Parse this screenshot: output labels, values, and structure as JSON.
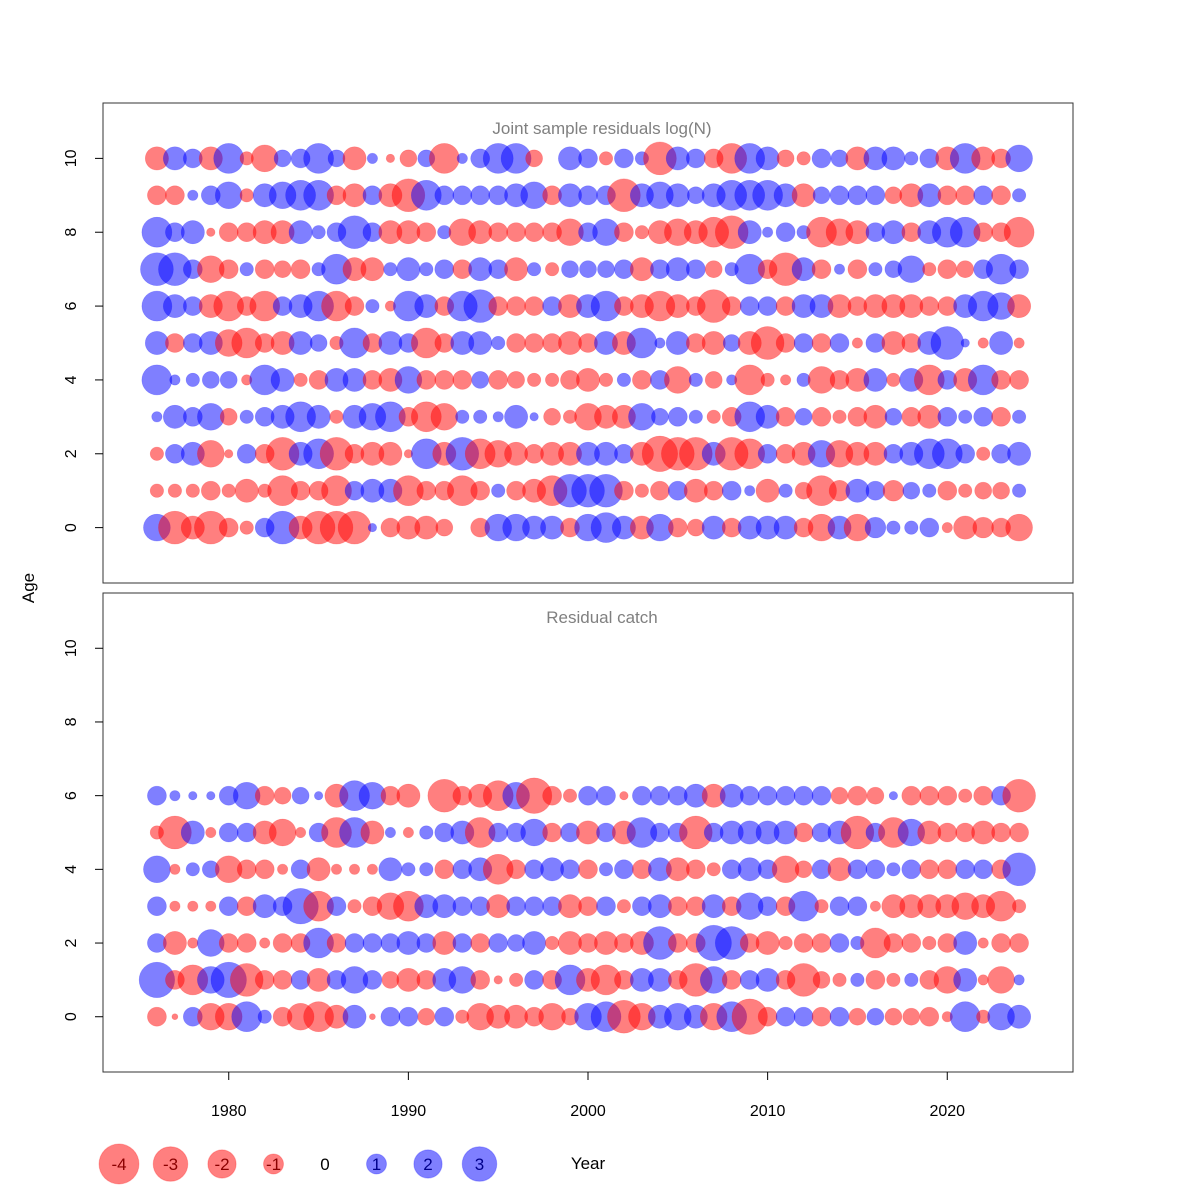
{
  "figure": {
    "ylabel": "Age",
    "xlabel": "Year"
  },
  "colors": {
    "negative": "#ff0000",
    "positive": "#0000ff",
    "title": "#808080",
    "text": "#000000"
  },
  "chart_data": [
    {
      "type": "scatter",
      "title": "Joint sample residuals log(N)",
      "ylabel": "Age",
      "xlabel": "Year",
      "xlim": [
        1973,
        2027
      ],
      "ylim": [
        -1.5,
        11.5
      ],
      "y_ticks": [
        "0",
        "2",
        "4",
        "6",
        "8",
        "10"
      ],
      "x_ticks": [
        "1980",
        "1990",
        "2000",
        "2010",
        "2020"
      ],
      "years": [
        1976,
        1977,
        1978,
        1979,
        1980,
        1981,
        1982,
        1983,
        1984,
        1985,
        1986,
        1987,
        1988,
        1989,
        1990,
        1991,
        1992,
        1993,
        1994,
        1995,
        1996,
        1997,
        1998,
        1999,
        2000,
        2001,
        2002,
        2003,
        2004,
        2005,
        2006,
        2007,
        2008,
        2009,
        2010,
        2011,
        2012,
        2013,
        2014,
        2015,
        2016,
        2017,
        2018,
        2019,
        2020,
        2021,
        2022,
        2023,
        2024
      ],
      "ages": [
        0,
        1,
        2,
        3,
        4,
        5,
        6,
        7,
        8,
        9,
        10
      ],
      "residuals": [
        [
          2.0,
          -3.0,
          -1.5,
          -3.0,
          -1.0,
          -0.5,
          1.0,
          3.0,
          -1.5,
          -3.0,
          -3.0,
          -3.0,
          0.2,
          -1.0,
          -1.5,
          -1.5,
          -0.8,
          0.0,
          -1.0,
          2.0,
          2.0,
          1.5,
          1.5,
          -1.0,
          2.0,
          2.5,
          1.5,
          -1.5,
          2.0,
          -1.0,
          -0.8,
          1.5,
          -1.0,
          1.5,
          1.5,
          1.5,
          -1.0,
          -2.0,
          1.5,
          -2.0,
          1.2,
          0.5,
          0.5,
          1.0,
          -0.3,
          -1.5,
          -1.2,
          -1.0,
          -2.0
        ],
        [
          -0.5,
          -0.5,
          -0.5,
          -1.0,
          -0.5,
          -1.5,
          -0.5,
          -2.5,
          -1.0,
          -1.0,
          -2.5,
          1.0,
          1.5,
          1.5,
          -2.5,
          -1.0,
          -1.0,
          -2.5,
          -1.0,
          0.5,
          -1.0,
          -1.5,
          -2.5,
          3.0,
          3.0,
          3.0,
          -1.0,
          -0.5,
          -1.0,
          1.0,
          -1.5,
          -1.0,
          1.0,
          0.3,
          -1.5,
          0.5,
          -0.8,
          -2.5,
          -1.2,
          1.5,
          1.0,
          -1.2,
          0.8,
          0.5,
          -1.0,
          -0.5,
          -0.8,
          -0.8,
          0.5
        ],
        [
          -0.5,
          1.0,
          1.5,
          -2.0,
          -0.2,
          1.0,
          -1.0,
          -3.0,
          1.5,
          2.5,
          -3.0,
          -1.0,
          -1.5,
          -1.5,
          -0.2,
          2.5,
          -1.5,
          3.0,
          -2.5,
          -2.0,
          -1.5,
          -1.0,
          -1.5,
          -1.5,
          1.5,
          1.5,
          1.0,
          -1.5,
          -3.5,
          -3.0,
          -3.0,
          1.5,
          -3.0,
          -2.5,
          1.0,
          -1.0,
          -1.5,
          2.0,
          -2.0,
          -1.5,
          -1.5,
          1.0,
          1.5,
          2.5,
          2.5,
          1.0,
          -0.5,
          1.0,
          1.5
        ],
        [
          0.3,
          1.5,
          1.0,
          2.0,
          -0.8,
          0.5,
          1.0,
          1.5,
          2.5,
          1.5,
          -0.5,
          1.5,
          2.0,
          2.5,
          -1.0,
          -2.5,
          -2.0,
          0.5,
          0.5,
          0.3,
          1.5,
          0.2,
          -0.8,
          -0.5,
          -2.0,
          -1.5,
          -1.5,
          2.0,
          0.8,
          1.0,
          0.5,
          -0.5,
          -1.0,
          2.5,
          1.5,
          -1.0,
          0.8,
          -1.0,
          -0.5,
          -1.0,
          -1.5,
          0.8,
          -1.0,
          -1.5,
          1.0,
          0.5,
          1.0,
          -1.0,
          0.5
        ],
        [
          2.5,
          0.3,
          0.5,
          0.8,
          0.8,
          -0.3,
          2.5,
          1.5,
          -0.5,
          -1.0,
          1.5,
          1.5,
          -1.0,
          -1.5,
          2.0,
          -1.0,
          -1.0,
          -1.0,
          0.8,
          -1.0,
          -0.8,
          -0.5,
          -0.5,
          -1.0,
          -1.5,
          -0.5,
          0.5,
          -1.0,
          1.0,
          -2.0,
          0.5,
          -0.8,
          0.3,
          -2.5,
          -0.5,
          -0.3,
          0.5,
          -2.0,
          -1.0,
          -1.5,
          1.5,
          -0.5,
          1.5,
          -2.5,
          1.0,
          -1.5,
          2.5,
          -1.0,
          -1.0
        ],
        [
          1.5,
          -1.0,
          1.0,
          1.5,
          -2.0,
          -2.5,
          -1.0,
          -1.5,
          1.5,
          0.8,
          -0.5,
          2.5,
          -1.0,
          1.5,
          1.0,
          -2.5,
          -1.0,
          1.5,
          1.5,
          0.5,
          -1.0,
          -1.0,
          -1.0,
          -1.5,
          -1.0,
          1.5,
          -1.5,
          2.5,
          0.3,
          1.5,
          -1.0,
          -1.5,
          0.8,
          -1.5,
          -3.0,
          -1.0,
          1.0,
          -1.0,
          1.0,
          -0.3,
          1.0,
          -1.5,
          -1.0,
          1.5,
          3.0,
          0.2,
          -0.3,
          1.5,
          -0.3
        ],
        [
          2.5,
          1.5,
          1.0,
          -1.5,
          -2.5,
          -1.0,
          -2.5,
          1.0,
          1.5,
          2.5,
          -2.5,
          -1.0,
          0.5,
          -0.3,
          2.5,
          1.5,
          -1.0,
          2.5,
          3.0,
          -1.0,
          -1.0,
          -1.0,
          1.0,
          -1.5,
          1.5,
          2.5,
          -1.0,
          -1.5,
          -2.5,
          -1.5,
          -1.0,
          -3.0,
          -1.0,
          1.0,
          1.0,
          -1.0,
          1.5,
          1.5,
          -1.5,
          -1.0,
          -1.5,
          -1.5,
          -1.5,
          -1.0,
          -1.0,
          1.5,
          2.5,
          2.0,
          -1.5
        ],
        [
          3.0,
          3.0,
          1.0,
          -2.0,
          -1.0,
          0.5,
          -1.0,
          -0.8,
          -1.0,
          0.5,
          2.5,
          -1.5,
          -1.5,
          0.5,
          1.5,
          0.5,
          1.0,
          -1.0,
          1.5,
          1.0,
          -1.5,
          0.5,
          -0.5,
          0.8,
          0.8,
          0.8,
          1.0,
          -1.5,
          1.0,
          1.5,
          1.0,
          -0.8,
          0.5,
          2.5,
          -1.0,
          -3.0,
          1.5,
          -1.0,
          0.3,
          -1.0,
          0.5,
          0.8,
          2.0,
          -0.5,
          -1.0,
          -0.8,
          1.0,
          2.5,
          1.0
        ],
        [
          2.5,
          1.0,
          1.5,
          -0.2,
          -1.0,
          -1.0,
          -1.5,
          -1.5,
          1.5,
          0.5,
          1.0,
          3.0,
          1.0,
          -1.5,
          -1.5,
          -1.0,
          0.5,
          -2.0,
          -1.5,
          -1.0,
          -1.0,
          -1.0,
          -1.0,
          -2.0,
          1.0,
          2.0,
          -1.0,
          -0.5,
          -1.5,
          -2.0,
          -1.5,
          -2.5,
          -3.0,
          1.5,
          0.3,
          1.0,
          0.5,
          -2.5,
          -2.0,
          -1.5,
          1.0,
          1.5,
          -1.0,
          1.5,
          2.5,
          2.5,
          -1.0,
          -1.0,
          -2.5
        ],
        [
          -1.0,
          -1.0,
          0.3,
          1.0,
          2.0,
          -0.5,
          1.5,
          2.0,
          2.5,
          2.5,
          -1.0,
          -1.5,
          1.0,
          -1.5,
          -3.0,
          2.5,
          1.0,
          1.0,
          1.0,
          1.0,
          1.5,
          2.0,
          -1.0,
          1.5,
          1.0,
          1.0,
          -3.0,
          1.5,
          2.0,
          1.5,
          0.8,
          1.5,
          2.5,
          2.5,
          2.5,
          1.5,
          -1.5,
          0.8,
          1.0,
          1.0,
          1.0,
          -0.8,
          -1.5,
          1.5,
          -1.0,
          -1.0,
          1.0,
          -1.0,
          0.5
        ],
        [
          -1.5,
          1.5,
          1.0,
          -1.5,
          2.5,
          -0.5,
          -2.0,
          0.8,
          1.0,
          2.5,
          0.8,
          -1.5,
          0.3,
          -0.2,
          -0.8,
          0.8,
          -2.5,
          0.3,
          1.0,
          2.5,
          2.5,
          -0.8,
          0.0,
          1.5,
          1.0,
          -0.5,
          1.0,
          0.5,
          -3.0,
          1.5,
          1.0,
          -1.0,
          -2.5,
          2.5,
          1.5,
          -0.8,
          -0.5,
          1.0,
          0.8,
          -1.5,
          1.5,
          1.5,
          0.5,
          1.0,
          -1.5,
          2.5,
          -1.5,
          -1.0,
          2.0
        ]
      ]
    },
    {
      "type": "scatter",
      "title": "Residual catch",
      "ylabel": "Age",
      "xlabel": "Year",
      "xlim": [
        1973,
        2027
      ],
      "ylim": [
        -1.5,
        11.5
      ],
      "y_ticks": [
        "0",
        "2",
        "4",
        "6",
        "8",
        "10"
      ],
      "x_ticks": [
        "1980",
        "1990",
        "2000",
        "2010",
        "2020"
      ],
      "years": [
        1976,
        1977,
        1978,
        1979,
        1980,
        1981,
        1982,
        1983,
        1984,
        1985,
        1986,
        1987,
        1988,
        1989,
        1990,
        1991,
        1992,
        1993,
        1994,
        1995,
        1996,
        1997,
        1998,
        1999,
        2000,
        2001,
        2002,
        2003,
        2004,
        2005,
        2006,
        2007,
        2008,
        2009,
        2010,
        2011,
        2012,
        2013,
        2014,
        2015,
        2016,
        2017,
        2018,
        2019,
        2020,
        2021,
        2022,
        2023,
        2024
      ],
      "ages": [
        0,
        1,
        2,
        3,
        4,
        5,
        6
      ],
      "residuals": [
        [
          -1.0,
          -0.1,
          1.0,
          -2.0,
          -2.0,
          2.5,
          0.5,
          -1.0,
          -2.0,
          -2.5,
          -1.5,
          1.5,
          -0.1,
          1.0,
          1.0,
          -0.8,
          1.0,
          -0.5,
          -2.0,
          -1.5,
          -1.5,
          -1.0,
          -2.0,
          -0.8,
          2.0,
          2.5,
          -3.0,
          -2.0,
          1.5,
          2.0,
          1.5,
          -2.0,
          2.5,
          -3.5,
          -1.0,
          1.0,
          1.0,
          -1.0,
          1.0,
          -0.8,
          0.8,
          -0.8,
          -0.8,
          -1.0,
          -0.3,
          2.5,
          -0.5,
          2.0,
          1.5
        ],
        [
          3.5,
          -1.0,
          -2.5,
          2.0,
          3.5,
          -3.0,
          -1.0,
          -1.0,
          1.0,
          -1.5,
          1.0,
          2.0,
          1.0,
          -0.8,
          -1.5,
          -1.0,
          1.5,
          2.0,
          -1.0,
          -0.2,
          -0.5,
          1.0,
          -1.0,
          2.5,
          -1.5,
          -2.5,
          -1.0,
          1.5,
          1.5,
          -1.0,
          -3.0,
          2.0,
          -1.0,
          1.0,
          1.5,
          -1.0,
          -3.0,
          -0.8,
          -0.5,
          0.5,
          -1.0,
          -0.5,
          0.5,
          -1.0,
          -2.0,
          1.5,
          -0.3,
          -2.0,
          0.3
        ],
        [
          1.0,
          -1.5,
          -0.3,
          2.0,
          -1.0,
          -1.0,
          -0.3,
          -1.0,
          -1.0,
          2.5,
          -1.0,
          1.0,
          1.0,
          1.0,
          1.5,
          1.0,
          -1.5,
          1.0,
          -1.0,
          1.0,
          0.8,
          1.5,
          -0.5,
          -1.5,
          -1.0,
          -1.5,
          -1.0,
          -1.5,
          3.0,
          -1.0,
          -1.0,
          3.5,
          3.0,
          -1.0,
          -1.5,
          -0.5,
          -1.0,
          -1.0,
          1.0,
          0.5,
          -2.5,
          -1.0,
          -1.0,
          -0.5,
          -1.0,
          1.5,
          -0.3,
          -1.0,
          -1.0
        ],
        [
          1.0,
          -0.3,
          -0.3,
          -0.3,
          1.0,
          -1.0,
          1.5,
          1.0,
          3.5,
          -2.5,
          1.0,
          -0.5,
          -1.0,
          -2.0,
          -2.5,
          1.5,
          1.5,
          1.0,
          1.0,
          -1.5,
          1.0,
          1.0,
          1.0,
          -1.5,
          -1.0,
          1.0,
          -0.5,
          1.0,
          1.5,
          -1.0,
          -1.0,
          1.5,
          -1.0,
          2.0,
          1.0,
          -1.0,
          2.5,
          -0.5,
          1.0,
          1.0,
          -0.3,
          -1.5,
          -1.5,
          -1.5,
          -1.5,
          -2.0,
          -1.5,
          -2.5,
          -0.5
        ],
        [
          2.0,
          -0.3,
          0.5,
          0.8,
          -2.0,
          -1.0,
          -1.0,
          -0.3,
          1.0,
          -1.5,
          -0.3,
          -0.3,
          -0.3,
          1.5,
          0.5,
          0.5,
          -1.0,
          1.0,
          1.5,
          -2.5,
          -1.0,
          1.0,
          1.5,
          1.0,
          -1.0,
          0.5,
          1.0,
          -1.0,
          1.5,
          -1.5,
          -1.0,
          -0.5,
          1.0,
          1.5,
          1.0,
          -2.0,
          -0.8,
          1.0,
          -1.5,
          1.0,
          1.0,
          0.5,
          1.0,
          -1.0,
          -1.0,
          1.0,
          1.0,
          -1.0,
          3.0
        ],
        [
          -0.5,
          -3.0,
          1.5,
          -0.3,
          1.0,
          1.0,
          -1.5,
          -2.0,
          -0.3,
          1.0,
          -2.5,
          2.5,
          -1.5,
          0.3,
          -0.3,
          0.5,
          1.0,
          1.5,
          -2.5,
          1.0,
          1.0,
          2.0,
          -1.0,
          1.0,
          -1.5,
          1.0,
          -1.5,
          2.5,
          1.0,
          1.0,
          -3.0,
          1.0,
          1.5,
          1.5,
          1.5,
          1.5,
          -1.0,
          1.0,
          1.5,
          -3.0,
          1.0,
          -2.5,
          2.0,
          -1.5,
          -1.0,
          -1.0,
          -1.5,
          -1.0,
          -1.0
        ],
        [
          1.0,
          0.3,
          0.2,
          0.2,
          1.0,
          2.0,
          -1.0,
          -0.8,
          0.8,
          0.2,
          -1.5,
          2.5,
          2.0,
          -1.0,
          -1.5,
          0.0,
          -3.0,
          -1.0,
          -1.5,
          -2.5,
          2.0,
          -3.5,
          -1.0,
          -0.5,
          1.0,
          1.0,
          -0.2,
          1.0,
          1.0,
          1.0,
          1.5,
          -1.5,
          1.5,
          1.0,
          1.0,
          1.0,
          1.0,
          1.0,
          -0.8,
          -1.0,
          -0.8,
          0.2,
          -1.0,
          -1.0,
          -1.0,
          -0.5,
          -1.0,
          1.0,
          -3.0
        ]
      ]
    }
  ],
  "legend": {
    "items": [
      {
        "label": "-4",
        "value": -4
      },
      {
        "label": "-3",
        "value": -3
      },
      {
        "label": "-2",
        "value": -2
      },
      {
        "label": "-1",
        "value": -1
      },
      {
        "label": "0",
        "value": 0
      },
      {
        "label": "1",
        "value": 1
      },
      {
        "label": "2",
        "value": 2
      },
      {
        "label": "3",
        "value": 3
      }
    ]
  }
}
